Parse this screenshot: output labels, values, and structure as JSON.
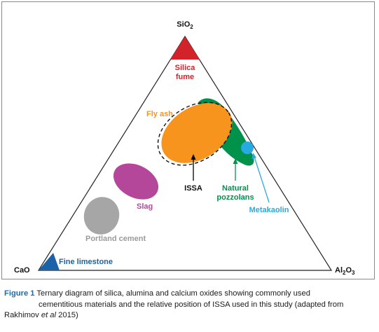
{
  "vertices": {
    "top": "SiO2",
    "left": "CaO",
    "right": "Al2O3"
  },
  "materials": {
    "silica_fume": {
      "line1": "Silica",
      "line2": "fume",
      "color": "#d2232a"
    },
    "fly_ash": {
      "label": "Fly ash",
      "color": "#f7941d"
    },
    "natural_pozzolans": {
      "line1": "Natural",
      "line2": "pozzolans",
      "color": "#00924a"
    },
    "metakaolin": {
      "label": "Metakaolin",
      "color": "#27aae1"
    },
    "slag": {
      "label": "Slag",
      "color": "#b5479b"
    },
    "portland_cement": {
      "label": "Portland cement",
      "color": "#a6a6a6"
    },
    "fine_limestone": {
      "label": "Fine limestone",
      "color": "#1c62a8"
    },
    "issa": {
      "label": "ISSA",
      "color": "#000000"
    }
  },
  "caption": {
    "figure_label": "Figure 1",
    "line1": "Ternary diagram of silica, alumina and calcium oxides showing commonly used",
    "line2": "cementitious materials and the relative position of ISSA used in this study (adapted from",
    "line3_prefix": "Rakhimov ",
    "line3_italic": "et al",
    "line3_suffix": " 2015)"
  }
}
